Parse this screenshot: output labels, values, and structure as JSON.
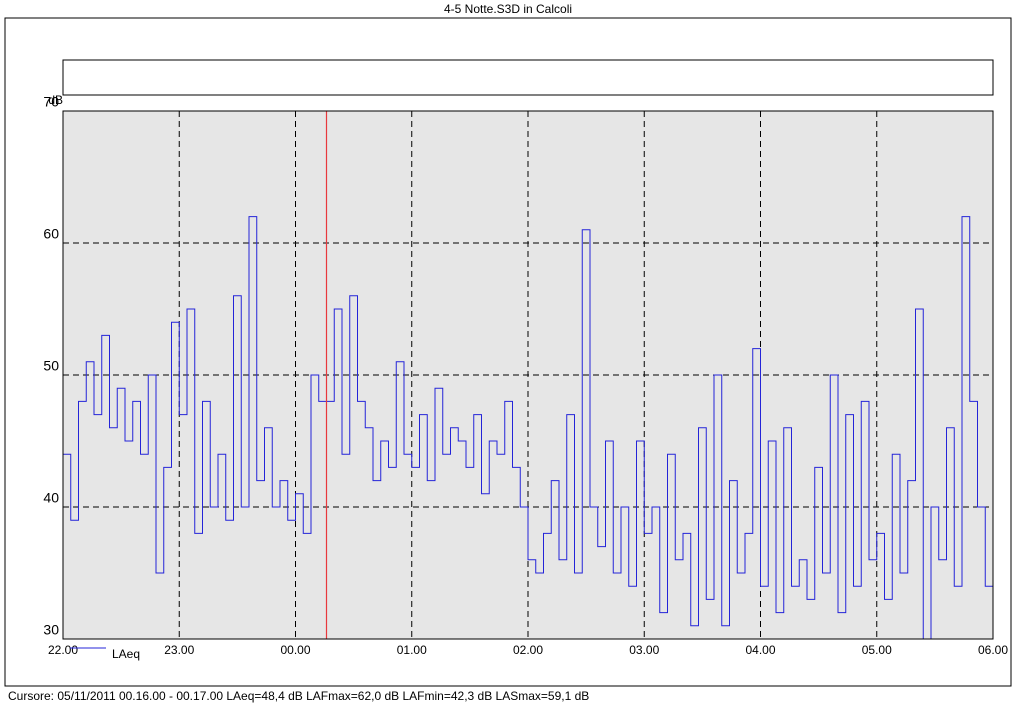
{
  "chart_data": {
    "type": "line",
    "title": "4-5 Notte.S3D in Calcoli",
    "y_label": "dB",
    "ylim": [
      30,
      70
    ],
    "yticks": [
      30,
      40,
      50,
      60,
      70
    ],
    "xlim": [
      0,
      480
    ],
    "xticks": [
      {
        "value": 0,
        "label": "22.00"
      },
      {
        "value": 60,
        "label": "23.00"
      },
      {
        "value": 120,
        "label": "00.00"
      },
      {
        "value": 180,
        "label": "01.00"
      },
      {
        "value": 240,
        "label": "02.00"
      },
      {
        "value": 300,
        "label": "03.00"
      },
      {
        "value": 360,
        "label": "04.00"
      },
      {
        "value": 420,
        "label": "05.00"
      },
      {
        "value": 480,
        "label": "06.00"
      }
    ],
    "grid": true,
    "step": true,
    "cursor": {
      "x": 136,
      "color": "#e8383d"
    },
    "x": [
      0,
      4,
      8,
      12,
      16,
      20,
      24,
      28,
      32,
      36,
      40,
      44,
      48,
      52,
      56,
      60,
      64,
      68,
      72,
      76,
      80,
      84,
      88,
      92,
      96,
      100,
      104,
      108,
      112,
      116,
      120,
      124,
      128,
      132,
      136,
      140,
      144,
      148,
      152,
      156,
      160,
      164,
      168,
      172,
      176,
      180,
      184,
      188,
      192,
      196,
      200,
      204,
      208,
      212,
      216,
      220,
      224,
      228,
      232,
      236,
      240,
      244,
      248,
      252,
      256,
      260,
      264,
      268,
      272,
      276,
      280,
      284,
      288,
      292,
      296,
      300,
      304,
      308,
      312,
      316,
      320,
      324,
      328,
      332,
      336,
      340,
      344,
      348,
      352,
      356,
      360,
      364,
      368,
      372,
      376,
      380,
      384,
      388,
      392,
      396,
      400,
      404,
      408,
      412,
      416,
      420,
      424,
      428,
      432,
      436,
      440,
      444,
      448,
      452,
      456,
      460,
      464,
      468,
      472,
      476
    ],
    "series": [
      {
        "name": "LAeq",
        "color": "#2424d8",
        "values": [
          44,
          39,
          48,
          51,
          47,
          53,
          46,
          49,
          45,
          48,
          44,
          50,
          35,
          43,
          54,
          47,
          55,
          38,
          48,
          40,
          44,
          39,
          56,
          40,
          62,
          42,
          46,
          40,
          42,
          39,
          41,
          38,
          50,
          48,
          48,
          55,
          44,
          56,
          48,
          46,
          42,
          45,
          43,
          51,
          44,
          43,
          47,
          42,
          49,
          44,
          46,
          45,
          43,
          47,
          41,
          45,
          44,
          48,
          43,
          40,
          36,
          35,
          38,
          42,
          36,
          47,
          35,
          61,
          40,
          37,
          45,
          35,
          40,
          34,
          45,
          38,
          40,
          32,
          44,
          36,
          38,
          31,
          46,
          33,
          50,
          31,
          42,
          35,
          38,
          52,
          34,
          45,
          32,
          46,
          34,
          36,
          33,
          43,
          35,
          50,
          32,
          47,
          34,
          48,
          36,
          38,
          33,
          44,
          35,
          42,
          55,
          30,
          40,
          36,
          46,
          34,
          62,
          48,
          40,
          34
        ]
      }
    ],
    "cursor_text": "Cursore: 05/11/2011 00.16.00 - 00.17.00  LAeq=48,4 dB  LAFmax=62,0 dB  LAFmin=42,3 dB  LASmax=59,1 dB"
  }
}
